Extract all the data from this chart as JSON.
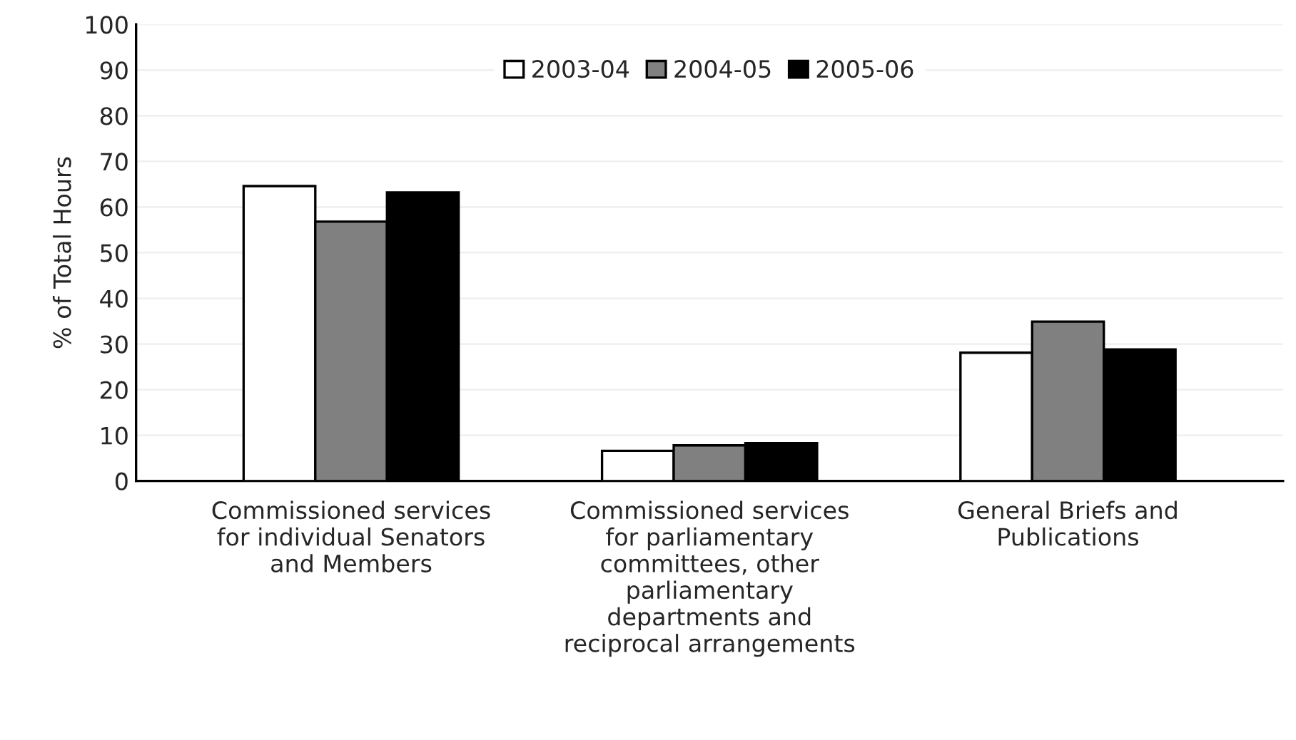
{
  "chart_data": {
    "type": "bar",
    "ylabel": "% of Total Hours",
    "categories": [
      "Commissioned services\nfor individual Senators\nand Members",
      "Commissioned services\nfor parliamentary\ncommittees, other\nparliamentary\ndepartments and\nreciprocal arrangements",
      "General Briefs and\nPublications"
    ],
    "series": [
      {
        "name": "2003-04",
        "color": "#ffffff",
        "values": [
          64.6,
          6.6,
          28.1
        ]
      },
      {
        "name": "2004-05",
        "color": "#808080",
        "values": [
          56.8,
          7.8,
          34.9
        ]
      },
      {
        "name": "2005-06",
        "color": "#000000",
        "values": [
          63.2,
          8.3,
          28.8
        ]
      }
    ],
    "ylim": [
      0,
      100
    ],
    "yticks": [
      0,
      10,
      20,
      30,
      40,
      50,
      60,
      70,
      80,
      90,
      100
    ],
    "grid": "y",
    "legend": "top"
  }
}
